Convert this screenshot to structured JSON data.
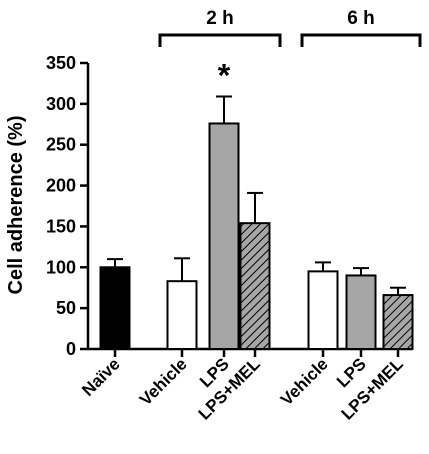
{
  "chart_data": {
    "type": "bar",
    "ylabel": "Cell adherence (%)",
    "ylim": [
      0,
      350
    ],
    "yticks": [
      0,
      50,
      100,
      150,
      200,
      250,
      300,
      350
    ],
    "grid": false,
    "groups": [
      {
        "label": "2 h",
        "categories": [
          "Vehicle",
          "LPS",
          "LPS+MEL"
        ]
      },
      {
        "label": "6 h",
        "categories": [
          "Vehicle",
          "LPS",
          "LPS+MEL"
        ]
      }
    ],
    "bars": [
      {
        "label": "Naïve",
        "value": 100,
        "error": 10,
        "fill": "#000000",
        "pattern": "solid"
      },
      {
        "label": "Vehicle",
        "value": 83,
        "error": 28,
        "fill": "#ffffff",
        "pattern": "solid",
        "group": "2 h"
      },
      {
        "label": "LPS",
        "value": 276,
        "error": 33,
        "fill": "#a6a6a6",
        "pattern": "solid",
        "group": "2 h",
        "annotation": "*"
      },
      {
        "label": "LPS+MEL",
        "value": 154,
        "error": 37,
        "fill": "#a6a6a6",
        "pattern": "hatch",
        "group": "2 h"
      },
      {
        "label": "Vehicle",
        "value": 95,
        "error": 11,
        "fill": "#ffffff",
        "pattern": "solid",
        "group": "6 h"
      },
      {
        "label": "LPS",
        "value": 90,
        "error": 9,
        "fill": "#a6a6a6",
        "pattern": "solid",
        "group": "6 h"
      },
      {
        "label": "LPS+MEL",
        "value": 66,
        "error": 9,
        "fill": "#a6a6a6",
        "pattern": "hatch",
        "group": "6 h"
      }
    ]
  }
}
